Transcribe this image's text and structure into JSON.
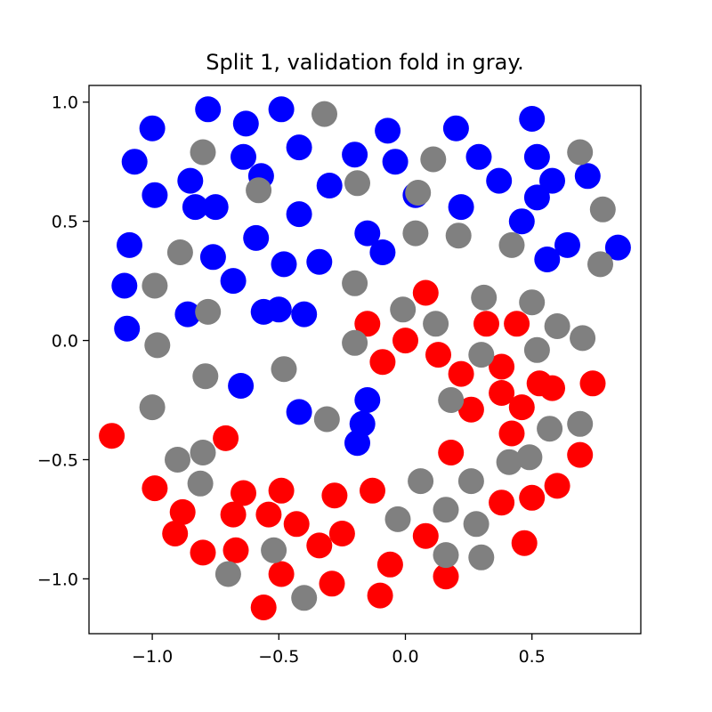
{
  "chart_data": {
    "type": "scatter",
    "title": "Split 1, validation fold in gray.",
    "xlabel": "",
    "ylabel": "",
    "xlim": [
      -1.25,
      0.93
    ],
    "ylim": [
      -1.23,
      1.07
    ],
    "x_ticks": [
      -1.0,
      -0.5,
      0.0,
      0.5
    ],
    "x_tick_labels": [
      "−1.0",
      "−0.5",
      "0.0",
      "0.5"
    ],
    "y_ticks": [
      1.0,
      0.5,
      0.0,
      -0.5,
      -1.0
    ],
    "y_tick_labels": [
      "1.0",
      "0.5",
      "0.0",
      "−0.5",
      "−1.0"
    ],
    "grid": false,
    "colors": {
      "blue": "#0000ff",
      "red": "#ff0000",
      "gray": "#808080"
    },
    "series": [
      {
        "color": "#0000ff",
        "points": [
          [
            -0.78,
            0.97
          ],
          [
            -0.49,
            0.97
          ],
          [
            -1.0,
            0.89
          ],
          [
            -0.63,
            0.91
          ],
          [
            -0.42,
            0.81
          ],
          [
            -1.07,
            0.75
          ],
          [
            -0.64,
            0.77
          ],
          [
            -0.57,
            0.69
          ],
          [
            -0.85,
            0.67
          ],
          [
            -0.99,
            0.61
          ],
          [
            -0.83,
            0.56
          ],
          [
            -0.75,
            0.56
          ],
          [
            -0.3,
            0.65
          ],
          [
            -0.42,
            0.53
          ],
          [
            -0.59,
            0.43
          ],
          [
            -1.09,
            0.4
          ],
          [
            -0.76,
            0.35
          ],
          [
            -0.48,
            0.32
          ],
          [
            -0.34,
            0.33
          ],
          [
            -0.68,
            0.25
          ],
          [
            -1.11,
            0.23
          ],
          [
            -0.86,
            0.11
          ],
          [
            -0.56,
            0.12
          ],
          [
            -0.5,
            0.13
          ],
          [
            -0.4,
            0.11
          ],
          [
            -1.1,
            0.05
          ],
          [
            -0.65,
            -0.19
          ],
          [
            -0.42,
            -0.3
          ],
          [
            -0.2,
            0.78
          ],
          [
            -0.07,
            0.88
          ],
          [
            -0.04,
            0.75
          ],
          [
            0.2,
            0.89
          ],
          [
            0.29,
            0.77
          ],
          [
            0.37,
            0.67
          ],
          [
            0.5,
            0.93
          ],
          [
            0.52,
            0.77
          ],
          [
            0.58,
            0.67
          ],
          [
            0.52,
            0.6
          ],
          [
            0.72,
            0.69
          ],
          [
            0.46,
            0.5
          ],
          [
            0.64,
            0.4
          ],
          [
            0.56,
            0.34
          ],
          [
            0.84,
            0.39
          ],
          [
            0.04,
            0.61
          ],
          [
            0.22,
            0.56
          ],
          [
            -0.15,
            0.45
          ],
          [
            -0.09,
            0.37
          ],
          [
            -0.15,
            -0.25
          ],
          [
            -0.17,
            -0.35
          ],
          [
            -0.19,
            -0.43
          ]
        ]
      },
      {
        "color": "#ff0000",
        "points": [
          [
            0.08,
            0.2
          ],
          [
            -0.15,
            0.07
          ],
          [
            0.0,
            0.0
          ],
          [
            -0.09,
            -0.09
          ],
          [
            0.13,
            -0.06
          ],
          [
            0.22,
            -0.14
          ],
          [
            0.32,
            0.07
          ],
          [
            0.44,
            0.07
          ],
          [
            0.38,
            -0.11
          ],
          [
            0.38,
            -0.22
          ],
          [
            0.53,
            -0.18
          ],
          [
            0.58,
            -0.2
          ],
          [
            0.74,
            -0.18
          ],
          [
            0.26,
            -0.29
          ],
          [
            0.46,
            -0.28
          ],
          [
            0.42,
            -0.39
          ],
          [
            0.18,
            -0.47
          ],
          [
            0.69,
            -0.48
          ],
          [
            0.38,
            -0.68
          ],
          [
            0.5,
            -0.66
          ],
          [
            0.6,
            -0.61
          ],
          [
            0.47,
            -0.85
          ],
          [
            0.16,
            -0.99
          ],
          [
            0.08,
            -0.82
          ],
          [
            -0.06,
            -0.94
          ],
          [
            -0.1,
            -1.07
          ],
          [
            -0.13,
            -0.63
          ],
          [
            -0.28,
            -0.65
          ],
          [
            -0.25,
            -0.81
          ],
          [
            -0.34,
            -0.86
          ],
          [
            -0.29,
            -1.02
          ],
          [
            -0.49,
            -0.63
          ],
          [
            -0.54,
            -0.73
          ],
          [
            -0.43,
            -0.77
          ],
          [
            -0.49,
            -0.98
          ],
          [
            -0.56,
            -1.12
          ],
          [
            -0.64,
            -0.64
          ],
          [
            -0.68,
            -0.73
          ],
          [
            -0.67,
            -0.88
          ],
          [
            -0.8,
            -0.89
          ],
          [
            -0.88,
            -0.72
          ],
          [
            -0.91,
            -0.81
          ],
          [
            -0.99,
            -0.62
          ],
          [
            -0.71,
            -0.41
          ],
          [
            -1.16,
            -0.4
          ]
        ]
      },
      {
        "color": "#808080",
        "points": [
          [
            -0.32,
            0.95
          ],
          [
            -0.8,
            0.79
          ],
          [
            -0.58,
            0.63
          ],
          [
            -0.19,
            0.66
          ],
          [
            0.11,
            0.76
          ],
          [
            -0.89,
            0.37
          ],
          [
            -0.99,
            0.23
          ],
          [
            -0.78,
            0.12
          ],
          [
            -0.2,
            0.24
          ],
          [
            -0.98,
            -0.02
          ],
          [
            -0.79,
            -0.15
          ],
          [
            -0.48,
            -0.12
          ],
          [
            -1.0,
            -0.28
          ],
          [
            -0.31,
            -0.33
          ],
          [
            -0.2,
            -0.01
          ],
          [
            0.05,
            0.62
          ],
          [
            0.04,
            0.45
          ],
          [
            0.21,
            0.44
          ],
          [
            0.42,
            0.4
          ],
          [
            0.69,
            0.79
          ],
          [
            0.78,
            0.55
          ],
          [
            0.77,
            0.32
          ],
          [
            -0.01,
            0.13
          ],
          [
            0.12,
            0.07
          ],
          [
            0.31,
            0.18
          ],
          [
            0.5,
            0.16
          ],
          [
            0.6,
            0.06
          ],
          [
            0.7,
            0.01
          ],
          [
            0.52,
            -0.04
          ],
          [
            0.3,
            -0.06
          ],
          [
            0.18,
            -0.25
          ],
          [
            0.57,
            -0.37
          ],
          [
            0.69,
            -0.35
          ],
          [
            0.41,
            -0.51
          ],
          [
            0.49,
            -0.49
          ],
          [
            0.26,
            -0.59
          ],
          [
            0.06,
            -0.59
          ],
          [
            0.16,
            -0.71
          ],
          [
            0.28,
            -0.77
          ],
          [
            0.3,
            -0.91
          ],
          [
            0.16,
            -0.9
          ],
          [
            -0.03,
            -0.75
          ],
          [
            -0.9,
            -0.5
          ],
          [
            -0.8,
            -0.47
          ],
          [
            -0.81,
            -0.6
          ],
          [
            -0.7,
            -0.98
          ],
          [
            -0.52,
            -0.88
          ],
          [
            -0.4,
            -1.08
          ]
        ]
      }
    ]
  }
}
